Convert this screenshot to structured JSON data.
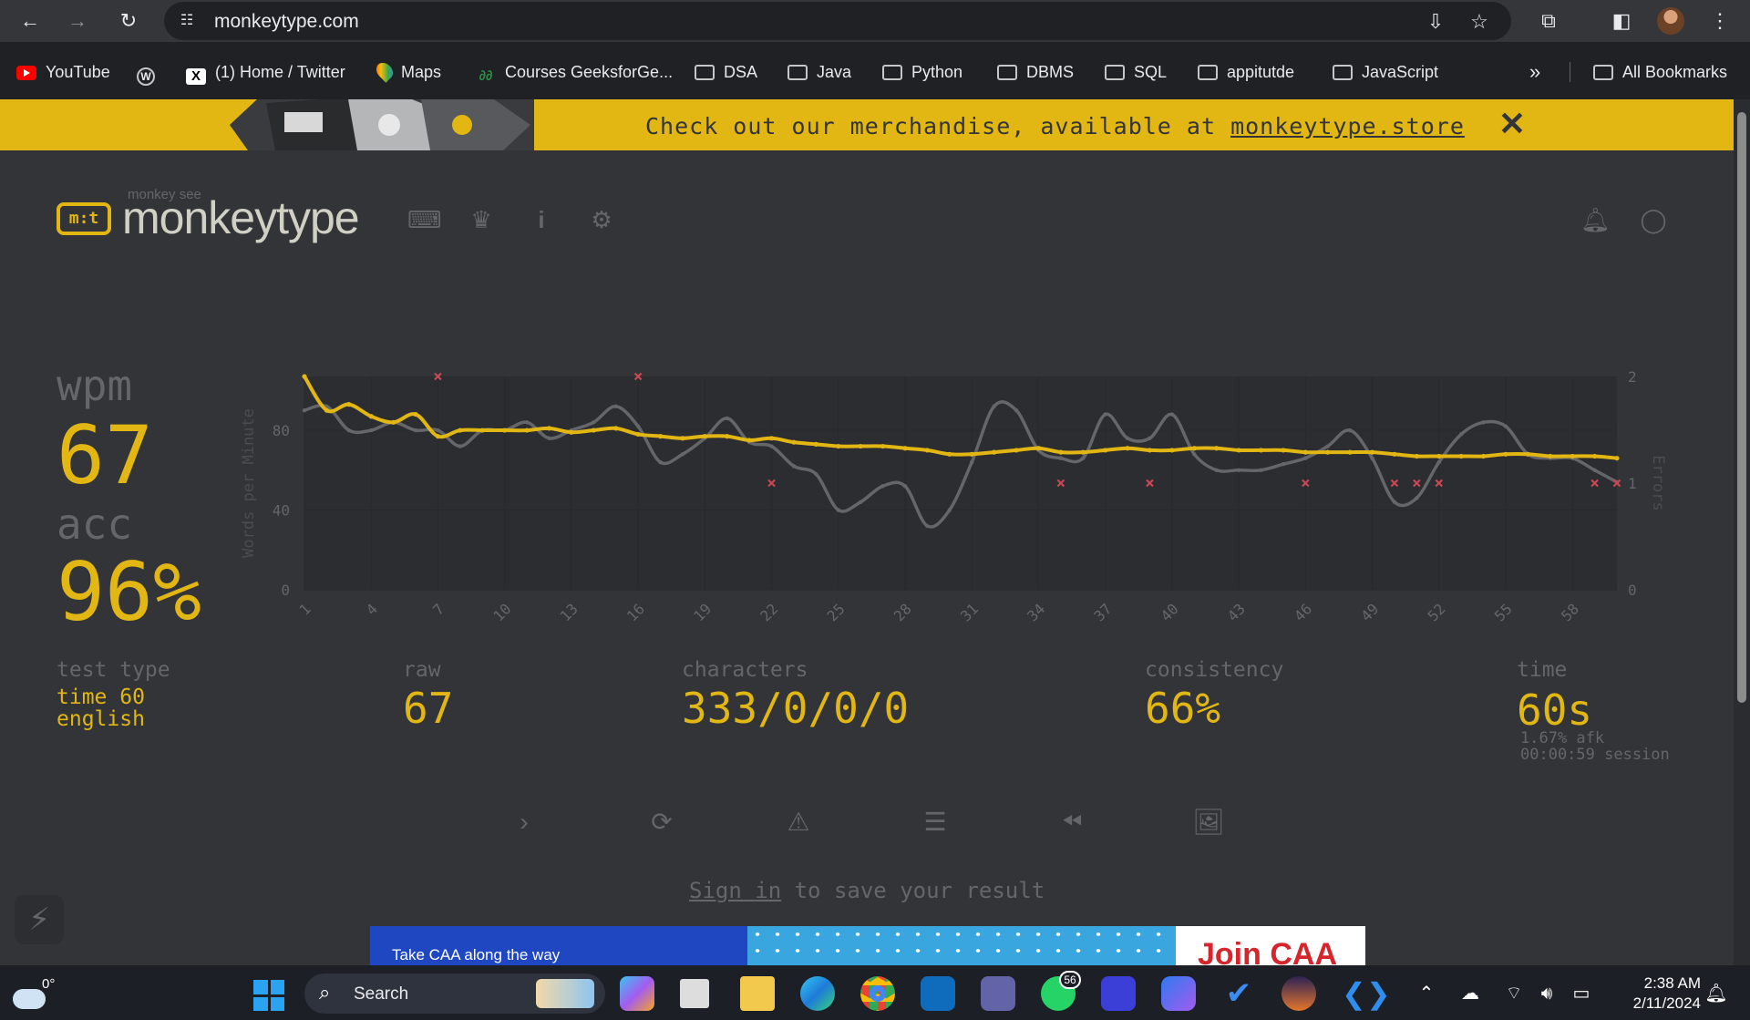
{
  "browser": {
    "url": "monkeytype.com",
    "bookmarks": [
      {
        "label": "YouTube",
        "icon": "youtube-icon"
      },
      {
        "label": "",
        "icon": "wordpress-icon"
      },
      {
        "label": "(1) Home / Twitter",
        "icon": "x-icon"
      },
      {
        "label": "Maps",
        "icon": "maps-icon"
      },
      {
        "label": "Courses GeeksforGe...",
        "icon": "geeksforgeeks-icon"
      },
      {
        "label": "DSA",
        "icon": "folder-icon"
      },
      {
        "label": "Java",
        "icon": "folder-icon"
      },
      {
        "label": "Python",
        "icon": "folder-icon"
      },
      {
        "label": "DBMS",
        "icon": "folder-icon"
      },
      {
        "label": "SQL",
        "icon": "folder-icon"
      },
      {
        "label": "appitutde",
        "icon": "folder-icon"
      },
      {
        "label": "JavaScript",
        "icon": "folder-icon"
      }
    ],
    "more_label": "»",
    "all_bookmarks": "All Bookmarks"
  },
  "banner": {
    "text": "Check out our merchandise, available at",
    "link": "monkeytype.store",
    "close": "✕"
  },
  "header": {
    "logo_mark": "m:t",
    "logo_small": "monkey see",
    "logo_text": "monkeytype"
  },
  "result": {
    "wpm_label": "wpm",
    "wpm": "67",
    "acc_label": "acc",
    "acc": "96%",
    "test_type_label": "test type",
    "test_type_1": "time 60",
    "test_type_2": "english",
    "raw_label": "raw",
    "raw": "67",
    "characters_label": "characters",
    "characters": "333/0/0/0",
    "consistency_label": "consistency",
    "consistency": "66%",
    "time_label": "time",
    "time": "60s",
    "afk": "1.67% afk",
    "session": "00:00:59 session"
  },
  "footer": {
    "signin_link": "Sign in",
    "signin_rest": "to save your result"
  },
  "ad": {
    "left_text": "Take CAA along the way",
    "right_text": "Join CAA"
  },
  "taskbar": {
    "temperature": "0°",
    "search": "Search",
    "whatsapp_badge": "56",
    "time": "2:38 AM",
    "date": "2/11/2024"
  },
  "colors": {
    "accent": "#e2b714",
    "background": "#323437",
    "sub": "#646669",
    "error": "#ca4754"
  },
  "chart_data": {
    "type": "line",
    "ylabel": "Words per Minute",
    "y2label": "Errors",
    "ylim": [
      0,
      107
    ],
    "y2lim": [
      0,
      2
    ],
    "yticks": [
      "0",
      "40",
      "80"
    ],
    "y2ticks": [
      "0",
      "1",
      "2"
    ],
    "xticks": [
      "1",
      "4",
      "7",
      "10",
      "13",
      "16",
      "19",
      "22",
      "25",
      "28",
      "31",
      "34",
      "37",
      "40",
      "43",
      "46",
      "49",
      "52",
      "55",
      "58"
    ],
    "x": [
      1,
      2,
      3,
      4,
      5,
      6,
      7,
      8,
      9,
      10,
      11,
      12,
      13,
      14,
      15,
      16,
      17,
      18,
      19,
      20,
      21,
      22,
      23,
      24,
      25,
      26,
      27,
      28,
      29,
      30,
      31,
      32,
      33,
      34,
      35,
      36,
      37,
      38,
      39,
      40,
      41,
      42,
      43,
      44,
      45,
      46,
      47,
      48,
      49,
      50,
      51,
      52,
      53,
      54,
      55,
      56,
      57,
      58,
      59,
      60
    ],
    "series": [
      {
        "name": "wpm",
        "color": "#e2b714",
        "values": [
          107,
          90,
          93,
          87,
          84,
          88,
          77,
          80,
          80,
          80,
          80,
          81,
          79,
          80,
          81,
          78,
          77,
          76,
          77,
          77,
          75,
          76,
          74,
          73,
          72,
          72,
          72,
          71,
          70,
          68,
          68,
          69,
          70,
          71,
          69,
          69,
          70,
          71,
          70,
          70,
          71,
          71,
          70,
          70,
          70,
          69,
          69,
          69,
          69,
          68,
          67,
          67,
          67,
          67,
          68,
          68,
          67,
          67,
          67,
          66
        ]
      },
      {
        "name": "raw",
        "color": "#646669",
        "values": [
          90,
          92,
          80,
          80,
          84,
          80,
          80,
          72,
          80,
          80,
          84,
          76,
          80,
          84,
          92,
          82,
          64,
          68,
          76,
          86,
          74,
          72,
          62,
          58,
          40,
          44,
          52,
          52,
          32,
          40,
          64,
          92,
          90,
          70,
          66,
          66,
          88,
          76,
          76,
          88,
          68,
          60,
          60,
          60,
          63,
          66,
          72,
          80,
          66,
          44,
          46,
          64,
          78,
          84,
          82,
          68,
          66,
          66,
          60,
          54
        ]
      },
      {
        "name": "errors",
        "color": "#ca4754",
        "values": [
          0,
          0,
          0,
          0,
          0,
          0,
          2,
          0,
          0,
          0,
          0,
          0,
          0,
          0,
          0,
          2,
          0,
          0,
          0,
          0,
          0,
          1,
          0,
          0,
          0,
          0,
          0,
          0,
          0,
          0,
          0,
          0,
          0,
          0,
          1,
          0,
          0,
          0,
          1,
          0,
          0,
          0,
          0,
          0,
          0,
          1,
          0,
          0,
          0,
          1,
          1,
          1,
          0,
          0,
          0,
          0,
          0,
          0,
          1,
          1
        ]
      }
    ],
    "grid": true
  }
}
